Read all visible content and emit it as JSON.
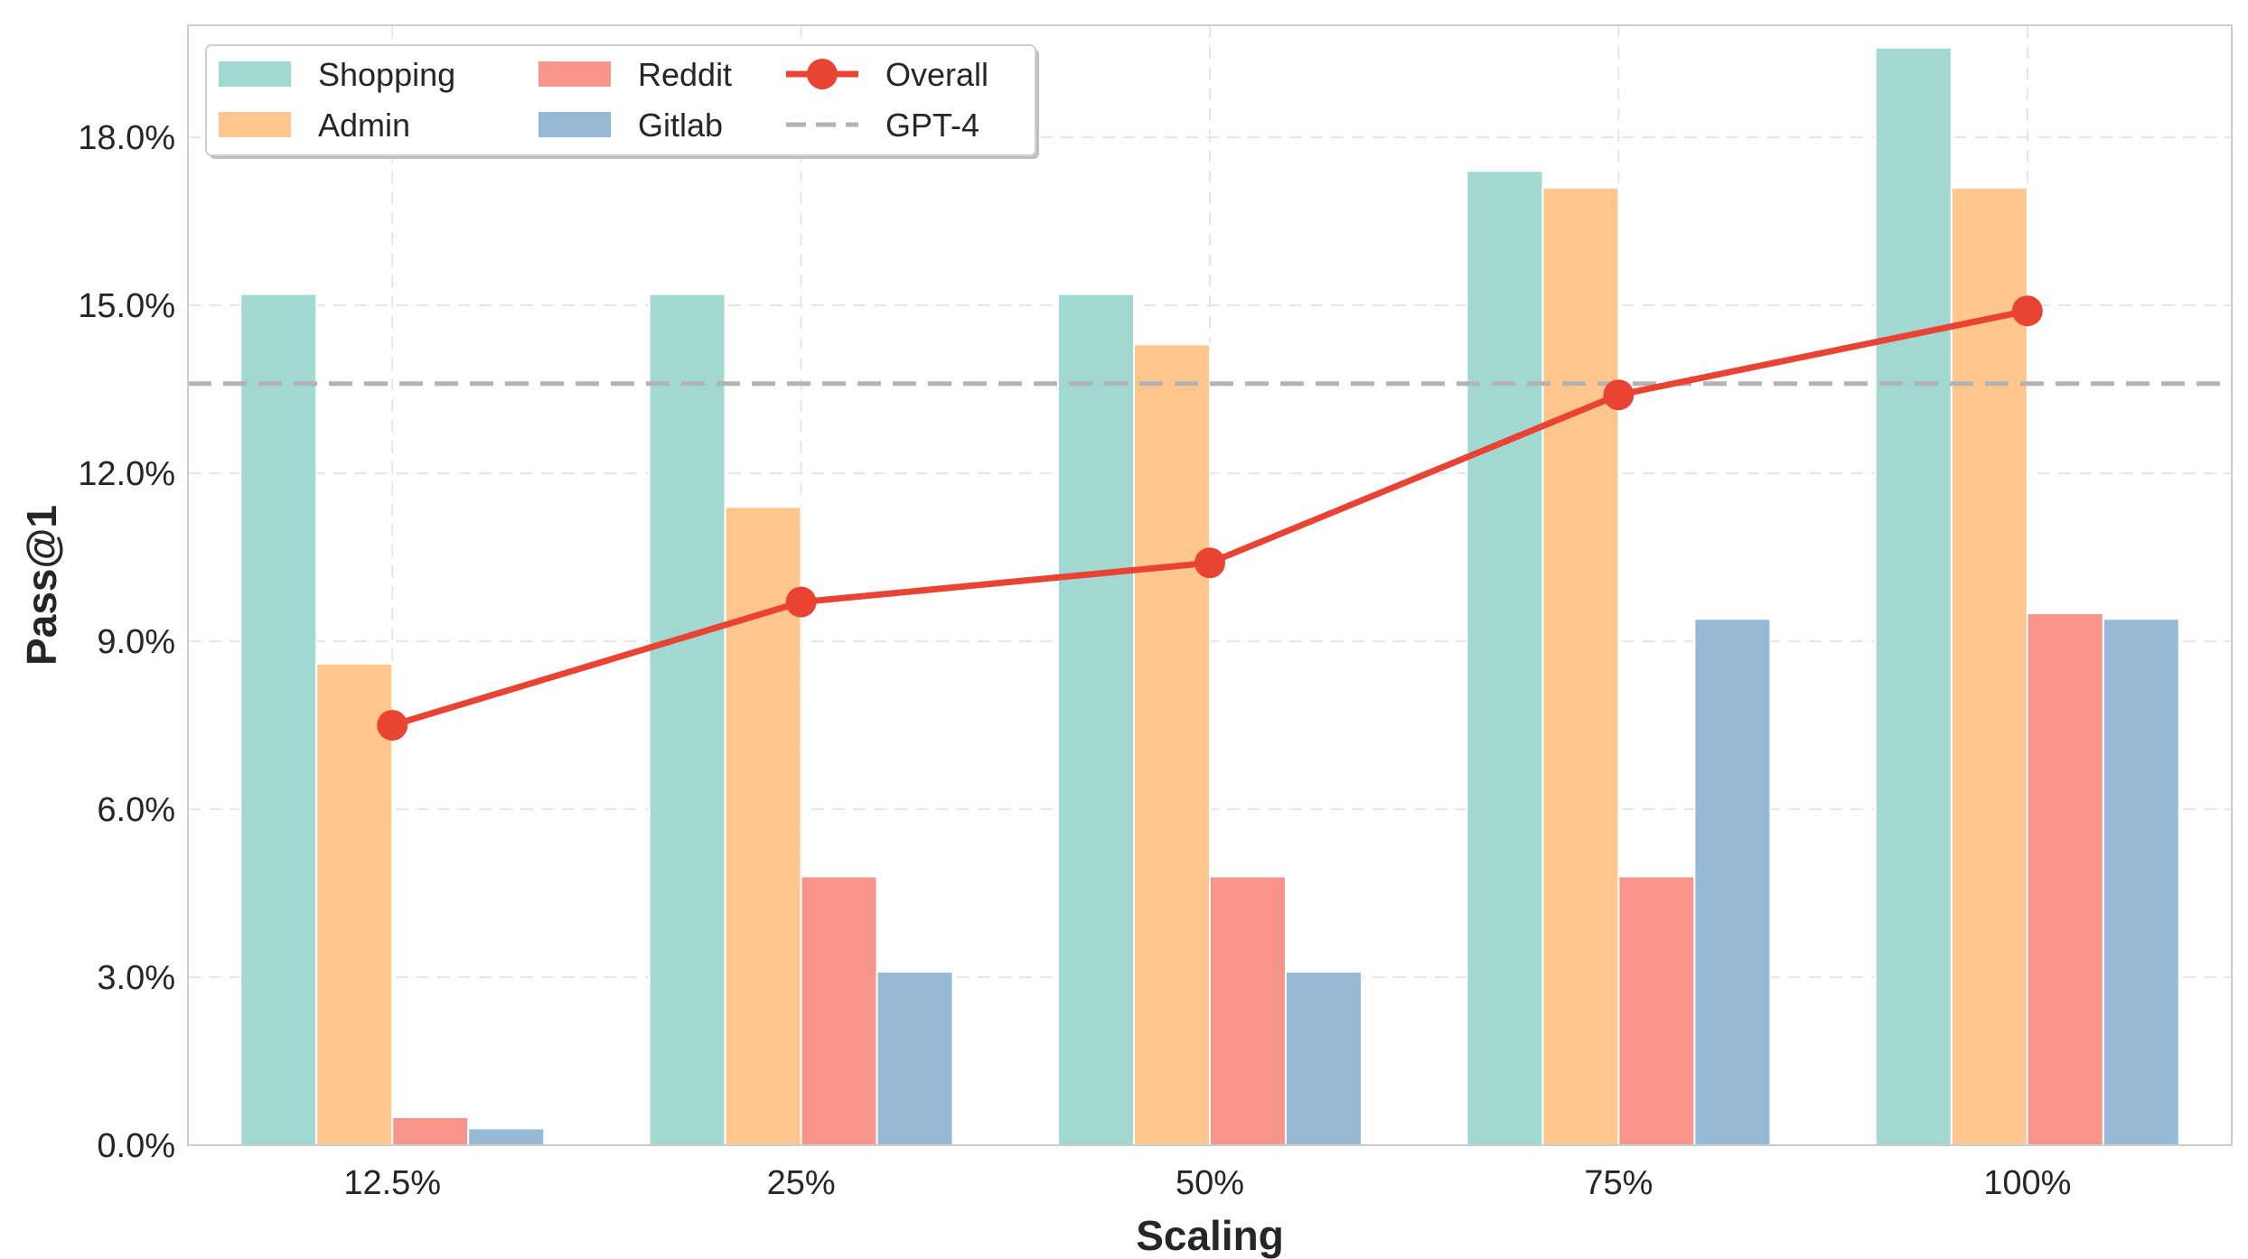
{
  "chart_data": {
    "type": "bar",
    "categories": [
      "12.5%",
      "25%",
      "50%",
      "75%",
      "100%"
    ],
    "series": [
      {
        "name": "Shopping",
        "kind": "bar",
        "color": "#a1d8d1",
        "values": [
          15.2,
          15.2,
          15.2,
          17.4,
          19.6
        ]
      },
      {
        "name": "Admin",
        "kind": "bar",
        "color": "#ffc68d",
        "values": [
          8.6,
          11.4,
          14.3,
          17.1,
          17.1
        ]
      },
      {
        "name": "Reddit",
        "kind": "bar",
        "color": "#f8958a",
        "values": [
          0.5,
          4.8,
          4.8,
          4.8,
          9.5
        ]
      },
      {
        "name": "Gitlab",
        "kind": "bar",
        "color": "#96bad6",
        "values": [
          0.3,
          3.1,
          3.1,
          9.4,
          9.4
        ]
      },
      {
        "name": "Overall",
        "kind": "line",
        "color": "#e94433",
        "values": [
          7.5,
          9.7,
          10.4,
          13.4,
          14.9
        ]
      }
    ],
    "reference_lines": [
      {
        "name": "GPT-4",
        "value": 13.6,
        "color": "#b3b3b3",
        "style": "dashed"
      }
    ],
    "xlabel": "Scaling",
    "ylabel": "Pass@1",
    "ylim": [
      0,
      20
    ],
    "yticks": [
      0,
      3,
      6,
      9,
      12,
      15,
      18
    ],
    "ytick_labels": [
      "0.0%",
      "3.0%",
      "6.0%",
      "9.0%",
      "12.0%",
      "15.0%",
      "18.0%"
    ],
    "grid": true,
    "legend_position": "top-left",
    "legend_order": [
      "Shopping",
      "Admin",
      "Reddit",
      "Gitlab",
      "Overall",
      "GPT-4"
    ]
  }
}
